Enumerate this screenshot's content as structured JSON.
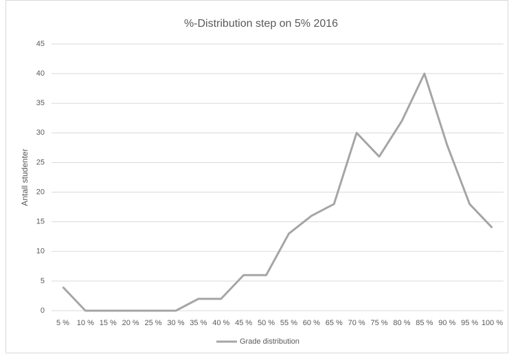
{
  "chart_data": {
    "type": "line",
    "title": "%-Distribution step on 5% 2016",
    "y_label": "Antall studenter",
    "categories": [
      "5 %",
      "10 %",
      "15 %",
      "20 %",
      "25 %",
      "30 %",
      "35 %",
      "40 %",
      "45 %",
      "50 %",
      "55 %",
      "60 %",
      "65 %",
      "70 %",
      "75 %",
      "80 %",
      "85 %",
      "90 %",
      "95 %",
      "100 %"
    ],
    "series": [
      {
        "name": "Grade distribution",
        "color": "#a5a5a5",
        "values": [
          4,
          0,
          0,
          0,
          0,
          0,
          2,
          2,
          6,
          6,
          13,
          16,
          18,
          30,
          26,
          32,
          40,
          28,
          18,
          14
        ]
      }
    ],
    "ylim": [
      0,
      45
    ],
    "yticks": [
      0,
      5,
      10,
      15,
      20,
      25,
      30,
      35,
      40,
      45
    ],
    "grid": true,
    "legend": "bottom"
  }
}
